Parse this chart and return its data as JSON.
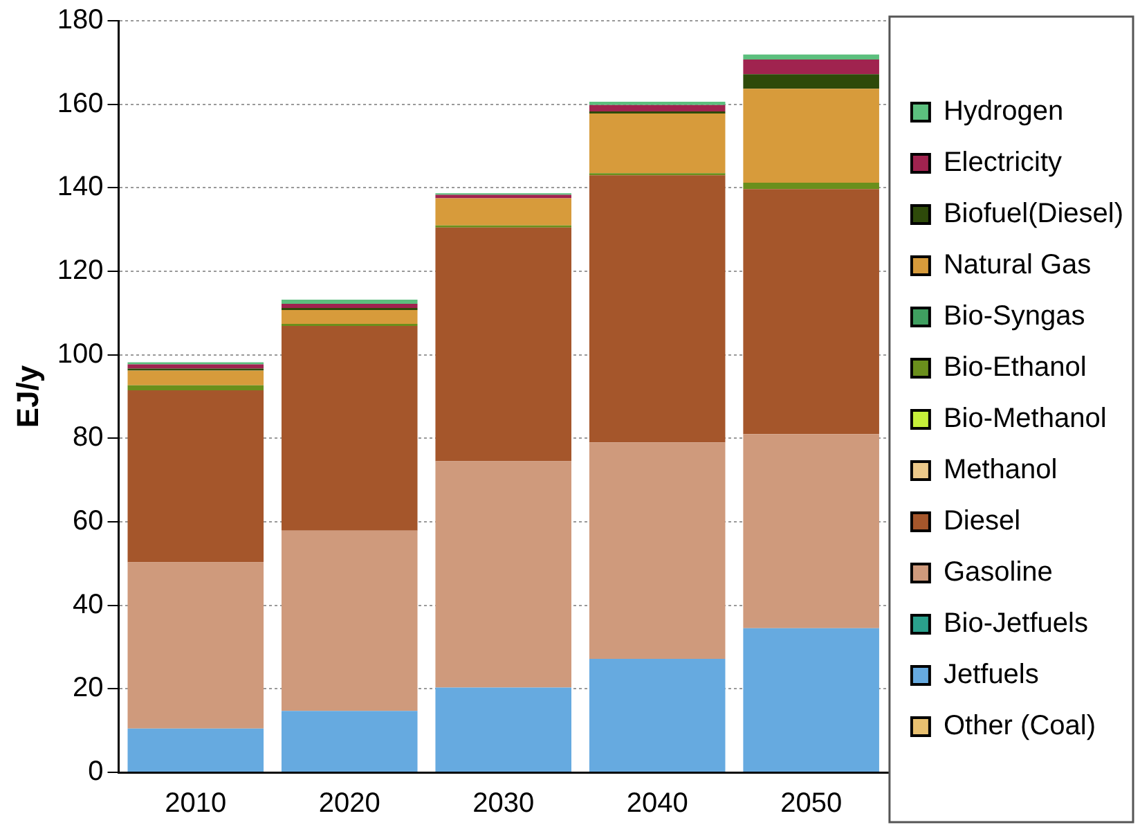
{
  "chart_data": {
    "type": "bar",
    "stacked": true,
    "ylabel": "EJ/y",
    "categories": [
      "2010",
      "2020",
      "2030",
      "2040",
      "2050"
    ],
    "ylim": [
      0,
      180
    ],
    "yticks": [
      0,
      20,
      40,
      60,
      80,
      100,
      120,
      140,
      160,
      180
    ],
    "grid": "y",
    "legend": "right",
    "series": [
      {
        "name": "Other (Coal)",
        "color": "#e8c070",
        "values": [
          0,
          0,
          0,
          0,
          0
        ]
      },
      {
        "name": "Jetfuels",
        "color": "#66aae0",
        "values": [
          10.5,
          14.7,
          20.3,
          27.2,
          34.5
        ]
      },
      {
        "name": "Bio-Jetfuels",
        "color": "#2aa08c",
        "values": [
          0,
          0,
          0,
          0,
          0
        ]
      },
      {
        "name": "Gasoline",
        "color": "#cf9a7c",
        "values": [
          39.8,
          43.2,
          54.2,
          51.8,
          46.5
        ]
      },
      {
        "name": "Diesel",
        "color": "#a5562b",
        "values": [
          41.2,
          49,
          56,
          64,
          58.7
        ]
      },
      {
        "name": "Methanol",
        "color": "#ecc98a",
        "values": [
          0,
          0,
          0,
          0,
          0
        ]
      },
      {
        "name": "Bio-Methanol",
        "color": "#c6f03a",
        "values": [
          0,
          0,
          0,
          0,
          0
        ]
      },
      {
        "name": "Bio-Ethanol",
        "color": "#6a8f1c",
        "values": [
          1.2,
          0.5,
          0.5,
          0.5,
          1.5
        ]
      },
      {
        "name": "Bio-Syngas",
        "color": "#3f9f60",
        "values": [
          0,
          0,
          0,
          0,
          0
        ]
      },
      {
        "name": "Natural Gas",
        "color": "#d79b3b",
        "values": [
          3.5,
          3.3,
          6.5,
          14.3,
          22.5
        ]
      },
      {
        "name": "Biofuel(Diesel)",
        "color": "#2e4a0a",
        "values": [
          0.5,
          0.5,
          0,
          0.5,
          3.5
        ]
      },
      {
        "name": "Electricity",
        "color": "#a0234f",
        "values": [
          1,
          1,
          0.8,
          1.5,
          3.5
        ]
      },
      {
        "name": "Hydrogen",
        "color": "#5cbf7e",
        "values": [
          0.5,
          1,
          0.4,
          0.8,
          1.2
        ]
      }
    ]
  }
}
